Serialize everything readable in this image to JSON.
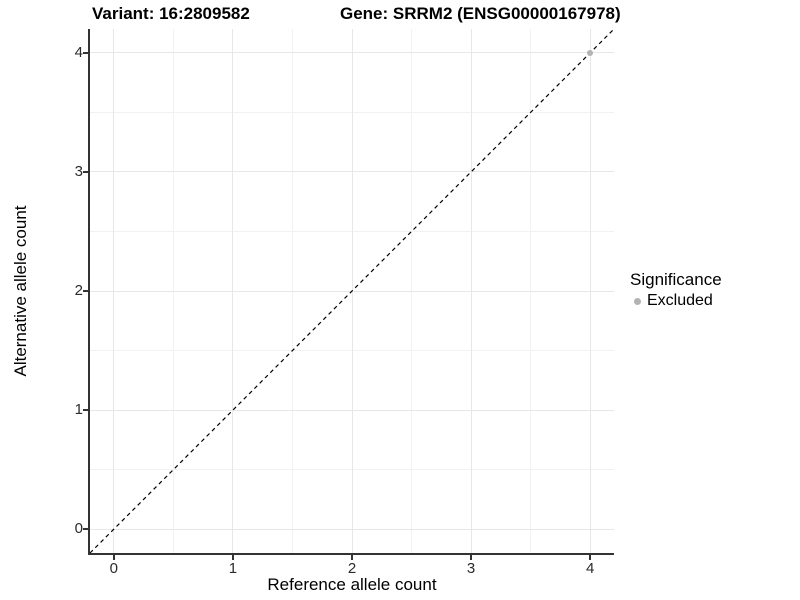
{
  "titles": {
    "variant": "Variant: 16:2809582",
    "gene": "Gene: SRRM2 (ENSG00000167978)"
  },
  "chart_data": {
    "type": "scatter",
    "title_left": "Variant: 16:2809582",
    "title_right": "Gene: SRRM2 (ENSG00000167978)",
    "xlabel": "Reference allele count",
    "ylabel": "Alternative allele count",
    "xlim": [
      -0.2,
      4.2
    ],
    "ylim": [
      -0.2,
      4.2
    ],
    "x_ticks": [
      0,
      1,
      2,
      3,
      4
    ],
    "y_ticks": [
      0,
      1,
      2,
      3,
      4
    ],
    "grid": "major and minor, light grey on white",
    "legend_position": "right",
    "points": [
      {
        "x": 4,
        "y": 4,
        "significance": "Excluded"
      }
    ],
    "identity_line": {
      "style": "dashed",
      "from": -0.2,
      "to": 4.2,
      "equation": "y = x"
    },
    "legend": {
      "title": "Significance",
      "items": [
        {
          "label": "Excluded",
          "color": "#b3b3b3"
        }
      ]
    }
  },
  "colors": {
    "background": "#ffffff",
    "axis_line": "#333333",
    "tick_text": "#2b2b2b",
    "grid_major": "#e7e7e7",
    "grid_minor": "#f2f2f2",
    "dashed_line": "#000000",
    "point_excluded": "#b3b3b3"
  }
}
